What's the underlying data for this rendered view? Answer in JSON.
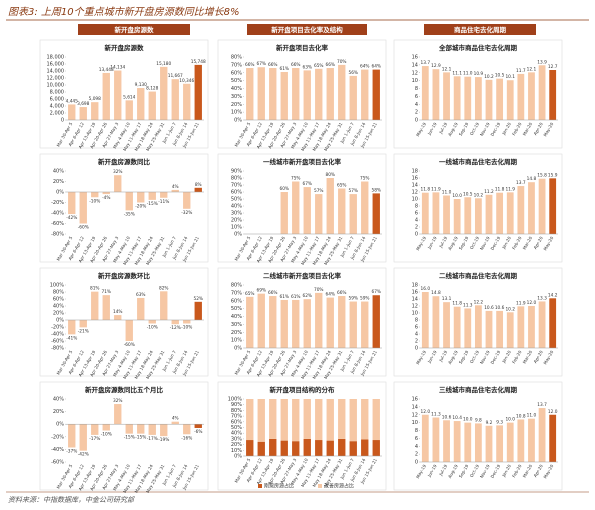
{
  "title": "图表3: 上周10个重点城市新开盘房源数同比增长8%",
  "section_headers": [
    "新开盘房源数",
    "新开盘项目去化率及结构",
    "商品住宅去化周期"
  ],
  "source": "资料来源：中指数据库，中金公司研究部",
  "chart_data": [
    {
      "type": "bar",
      "title": "新开盘房源数",
      "color": "#f6c7a4",
      "highlight_color": "#c9581c",
      "categories": [
        "Mar 30-Apr 5",
        "Apr 6-Apr 12",
        "Apr 13-Apr 19",
        "Apr 20-Apr 26",
        "Apr 27-May 3",
        "May 4-May 10",
        "May 11-May 17",
        "May 18-May 24",
        "May 25-May 31",
        "Jun 1-Jun 7",
        "Jun 8-Jun 14",
        "Jun 15-Jun 21"
      ],
      "values": [
        4445,
        3698,
        5098,
        13448,
        14134,
        5614,
        9130,
        8128,
        15180,
        11667,
        10346,
        15748
      ],
      "value_labels": [
        "4,445",
        "3,698",
        "5,098",
        "13,448",
        "14,134",
        "5,614",
        "9,130",
        "8,128",
        "15,180",
        "11,667",
        "10,346",
        "15,748"
      ],
      "ylim": [
        0,
        18000
      ],
      "yticks": [
        0,
        {
          "value": 2000,
          "label": "2,000"
        },
        {
          "value": 4000,
          "label": "4,000"
        },
        {
          "value": 6000,
          "label": "6,000"
        },
        {
          "value": 8000,
          "label": "8,000"
        },
        {
          "value": 10000,
          "label": "10,000"
        },
        {
          "value": 12000,
          "label": "12,000"
        },
        {
          "value": 14000,
          "label": "14,000"
        },
        {
          "value": 16000,
          "label": "16,000"
        },
        {
          "value": 18000,
          "label": "18,000"
        }
      ]
    },
    {
      "type": "bar",
      "title": "新开盘项目去化率",
      "color": "#f6c7a4",
      "highlight_color": "#c9581c",
      "categories": [
        "Mar 30-Apr 5",
        "Apr 6-Apr 12",
        "Apr 13-Apr 19",
        "Apr 20-Apr 26",
        "Apr 27-May 3",
        "May 4-May 10",
        "May 11-May 17",
        "May 18-May 24",
        "May 25-May 31",
        "Jun 1-Jun 7",
        "Jun 8-Jun 14",
        "Jun 15-Jun 21"
      ],
      "values": [
        66,
        67,
        66,
        61,
        66,
        63,
        65,
        66,
        70,
        56,
        64,
        64
      ],
      "value_labels": [
        "66%",
        "67%",
        "66%",
        "61%",
        "66%",
        "63%",
        "65%",
        "66%",
        "70%",
        "56%",
        "64%",
        "64%"
      ],
      "ylim": [
        0,
        80
      ],
      "yticks": [
        {
          "value": 0,
          "label": "0%"
        },
        {
          "value": 10,
          "label": "10%"
        },
        {
          "value": 20,
          "label": "20%"
        },
        {
          "value": 30,
          "label": "30%"
        },
        {
          "value": 40,
          "label": "40%"
        },
        {
          "value": 50,
          "label": "50%"
        },
        {
          "value": 60,
          "label": "60%"
        },
        {
          "value": 70,
          "label": "70%"
        },
        {
          "value": 80,
          "label": "80%"
        }
      ]
    },
    {
      "type": "bar",
      "title": "全部城市商品住宅去化周期",
      "color": "#f6c7a4",
      "highlight_color": "#c9581c",
      "categories": [
        "May-19",
        "Jun-19",
        "Jul-19",
        "Aug-19",
        "Sep-19",
        "Oct-19",
        "Nov-19",
        "Dec-19",
        "Jan-20",
        "Feb-20",
        "Mar-20",
        "Apr-20",
        "May-20"
      ],
      "values": [
        13.7,
        12.9,
        12.1,
        11.1,
        11.0,
        10.9,
        10.2,
        10.5,
        10.1,
        11.7,
        12.1,
        13.9,
        12.7
      ],
      "value_labels": [
        "13.7",
        "12.9",
        "12.1",
        "11.1",
        "11.0",
        "10.9",
        "10.2",
        "10.5",
        "10.1",
        "11.7",
        "12.1",
        "13.9",
        "12.7"
      ],
      "ylim": [
        0,
        16
      ],
      "yticks": [
        0,
        2,
        4,
        6,
        8,
        10,
        12,
        14,
        16
      ]
    },
    {
      "type": "bar",
      "title": "新开盘房源数同比",
      "color": "#f6c7a4",
      "highlight_color": "#c9581c",
      "categories": [
        "Mar 30-Apr 5",
        "Apr 6-Apr 12",
        "Apr 13-Apr 19",
        "Apr 20-Apr 26",
        "Apr 27-May 3",
        "May 4-May 10",
        "May 11-May 17",
        "May 18-May 24",
        "May 25-May 31",
        "Jun 1-Jun 7",
        "Jun 8-Jun 14",
        "Jun 15-Jun 21"
      ],
      "values": [
        -42,
        -60,
        -10,
        -4,
        32,
        -35,
        -20,
        -15,
        -11,
        4,
        -32,
        8
      ],
      "value_labels": [
        "-42%",
        "-60%",
        "-10%",
        "-4%",
        "32%",
        "-35%",
        "-20%",
        "-15%",
        "-11%",
        "4%",
        "-32%",
        "8%"
      ],
      "ylim": [
        -80,
        40
      ],
      "yticks": [
        {
          "value": -80,
          "label": "-80%"
        },
        {
          "value": -60,
          "label": "-60%"
        },
        {
          "value": -40,
          "label": "-40%"
        },
        {
          "value": -20,
          "label": "-20%"
        },
        {
          "value": 0,
          "label": "0%"
        },
        {
          "value": 20,
          "label": "20%"
        },
        {
          "value": 40,
          "label": "40%"
        }
      ]
    },
    {
      "type": "bar",
      "title": "一线城市新开盘项目去化率",
      "color": "#f6c7a4",
      "highlight_color": "#c9581c",
      "categories": [
        "Mar 30-Apr 5",
        "Apr 6-Apr 12",
        "Apr 13-Apr 19",
        "Apr 20-Apr 26",
        "Apr 27-May 3",
        "May 4-May 10",
        "May 11-May 17",
        "May 18-May 24",
        "May 25-May 31",
        "Jun 1-Jun 7",
        "Jun 8-Jun 14",
        "Jun 15-Jun 21"
      ],
      "values": [
        null,
        null,
        null,
        60,
        75,
        67,
        57,
        80,
        65,
        57,
        75,
        58
      ],
      "value_labels": [
        null,
        null,
        null,
        "60%",
        "75%",
        "67%",
        "57%",
        "80%",
        "65%",
        "57%",
        "75%",
        "58%"
      ],
      "ylim": [
        0,
        90
      ],
      "yticks": [
        {
          "value": 0,
          "label": "0%"
        },
        {
          "value": 10,
          "label": "10%"
        },
        {
          "value": 20,
          "label": "20%"
        },
        {
          "value": 30,
          "label": "30%"
        },
        {
          "value": 40,
          "label": "40%"
        },
        {
          "value": 50,
          "label": "50%"
        },
        {
          "value": 60,
          "label": "60%"
        },
        {
          "value": 70,
          "label": "70%"
        },
        {
          "value": 80,
          "label": "80%"
        },
        {
          "value": 90,
          "label": "90%"
        }
      ]
    },
    {
      "type": "bar",
      "title": "一线城市商品住宅去化周期",
      "color": "#f6c7a4",
      "highlight_color": "#c9581c",
      "categories": [
        "May-19",
        "Jun-19",
        "Jul-19",
        "Aug-19",
        "Sep-19",
        "Oct-19",
        "Nov-19",
        "Dec-19",
        "Jan-20",
        "Feb-20",
        "Mar-20",
        "Apr-20",
        "May-20"
      ],
      "values": [
        11.8,
        11.9,
        11.0,
        10.0,
        10.5,
        10.2,
        11.2,
        11.8,
        11.9,
        13.7,
        14.8,
        15.8,
        15.9
      ],
      "value_labels": [
        "11.8",
        "11.9",
        "11.0",
        "10.0",
        "10.5",
        "10.2",
        "11.2",
        "11.8",
        "11.9",
        "13.7",
        "14.8",
        "15.8",
        "15.9"
      ],
      "ylim": [
        0,
        18
      ],
      "yticks": [
        0,
        2,
        4,
        6,
        8,
        10,
        12,
        14,
        16,
        18
      ]
    },
    {
      "type": "bar",
      "title": "新开盘房源数环比",
      "color": "#f6c7a4",
      "highlight_color": "#c9581c",
      "categories": [
        "Mar 30-Apr 5",
        "Apr 6-Apr 12",
        "Apr 13-Apr 19",
        "Apr 20-Apr 26",
        "Apr 27-May 3",
        "May 4-May 10",
        "May 11-May 17",
        "May 18-May 24",
        "May 25-May 31",
        "Jun 1-Jun 7",
        "Jun 8-Jun 14",
        "Jun 15-Jun 21"
      ],
      "values": [
        -41,
        -21,
        81,
        71,
        14,
        -60,
        63,
        -10,
        82,
        -12,
        -10,
        52
      ],
      "value_labels": [
        "-41%",
        "-21%",
        "81%",
        "71%",
        "14%",
        "-60%",
        "63%",
        "-10%",
        "82%",
        "-12%",
        "-10%",
        "52%"
      ],
      "ylim": [
        -80,
        100
      ],
      "yticks": [
        {
          "value": -80,
          "label": "-80%"
        },
        {
          "value": -60,
          "label": "-60%"
        },
        {
          "value": -40,
          "label": "-40%"
        },
        {
          "value": -20,
          "label": "-20%"
        },
        {
          "value": 0,
          "label": "0%"
        },
        {
          "value": 20,
          "label": "20%"
        },
        {
          "value": 40,
          "label": "40%"
        },
        {
          "value": 60,
          "label": "60%"
        },
        {
          "value": 80,
          "label": "80%"
        },
        {
          "value": 100,
          "label": "100%"
        }
      ]
    },
    {
      "type": "bar",
      "title": "二线城市新开盘项目去化率",
      "color": "#f6c7a4",
      "highlight_color": "#c9581c",
      "categories": [
        "Mar 30-Apr 5",
        "Apr 6-Apr 12",
        "Apr 13-Apr 19",
        "Apr 20-Apr 26",
        "Apr 27-May 3",
        "May 4-May 10",
        "May 11-May 17",
        "May 18-May 24",
        "May 25-May 31",
        "Jun 1-Jun 7",
        "Jun 8-Jun 14",
        "Jun 15-Jun 21"
      ],
      "values": [
        65,
        69,
        66,
        61,
        61,
        62,
        70,
        64,
        66,
        59,
        59,
        67
      ],
      "value_labels": [
        "65%",
        "69%",
        "66%",
        "61%",
        "61%",
        "62%",
        "70%",
        "64%",
        "66%",
        "59%",
        "59%",
        "67%"
      ],
      "ylim": [
        0,
        80
      ],
      "yticks": [
        {
          "value": 0,
          "label": "0%"
        },
        {
          "value": 10,
          "label": "10%"
        },
        {
          "value": 20,
          "label": "20%"
        },
        {
          "value": 30,
          "label": "30%"
        },
        {
          "value": 40,
          "label": "40%"
        },
        {
          "value": 50,
          "label": "50%"
        },
        {
          "value": 60,
          "label": "60%"
        },
        {
          "value": 70,
          "label": "70%"
        },
        {
          "value": 80,
          "label": "80%"
        }
      ]
    },
    {
      "type": "bar",
      "title": "二线城市商品住宅去化周期",
      "color": "#f6c7a4",
      "highlight_color": "#c9581c",
      "categories": [
        "May-19",
        "Jun-19",
        "Jul-19",
        "Aug-19",
        "Sep-19",
        "Oct-19",
        "Nov-19",
        "Dec-19",
        "Jan-20",
        "Feb-20",
        "Mar-20",
        "Apr-20",
        "May-20"
      ],
      "values": [
        16.0,
        14.8,
        13.1,
        11.8,
        11.3,
        12.2,
        10.6,
        10.6,
        10.2,
        11.9,
        12.0,
        13.3,
        14.2
      ],
      "value_labels": [
        "16.0",
        "14.8",
        "13.1",
        "11.8",
        "11.3",
        "12.2",
        "10.6",
        "10.6",
        "10.2",
        "11.9",
        "12.0",
        "13.3",
        "14.2"
      ],
      "ylim": [
        0,
        18
      ],
      "yticks": [
        0,
        2,
        4,
        6,
        8,
        10,
        12,
        14,
        16,
        18
      ]
    },
    {
      "type": "bar",
      "title": "新开盘房源数同比五个月比",
      "color": "#f6c7a4",
      "highlight_color": "#c9581c",
      "categories": [
        "Mar 30-Apr 5",
        "Apr 6-Apr 12",
        "Apr 13-Apr 19",
        "Apr 20-Apr 26",
        "Apr 27-May 3",
        "May 4-May 10",
        "May 11-May 17",
        "May 18-May 24",
        "May 25-May 31",
        "Jun 1-Jun 7",
        "Jun 8-Jun 14",
        "Jun 15-Jun 21"
      ],
      "values": [
        -37,
        -42,
        -17,
        -10,
        32,
        -15,
        -15,
        -17,
        -19,
        4,
        -16,
        -6
      ],
      "value_labels": [
        "-37%",
        "-42%",
        "-17%",
        "-10%",
        "32%",
        "-15%",
        "-15%",
        "-17%",
        "-19%",
        "4%",
        "-16%",
        "-6%"
      ],
      "ylim": [
        -60,
        40
      ],
      "yticks": [
        {
          "value": -60,
          "label": "-60%"
        },
        {
          "value": -40,
          "label": "-40%"
        },
        {
          "value": -20,
          "label": "-20%"
        },
        {
          "value": 0,
          "label": "0%"
        },
        {
          "value": 20,
          "label": "20%"
        },
        {
          "value": 40,
          "label": "40%"
        }
      ]
    },
    {
      "type": "stacked_bar",
      "title": "新开盘项目结构的分布",
      "categories": [
        "Mar 30-Apr 5",
        "Apr 6-Apr 12",
        "Apr 13-Apr 19",
        "Apr 20-Apr 26",
        "Apr 27-May 3",
        "May 4-May 10",
        "May 11-May 17",
        "May 18-May 24",
        "May 25-May 31",
        "Jun 1-Jun 7",
        "Jun 8-Jun 14",
        "Jun 15-Jun 21"
      ],
      "series": [
        {
          "name": "刚需房源占比",
          "color": "#c9581c",
          "values": [
            28,
            25,
            30,
            27,
            26,
            30,
            28,
            27,
            30,
            26,
            29,
            28
          ]
        },
        {
          "name": "改善房源占比",
          "color": "#f6c7a4",
          "values": [
            72,
            75,
            70,
            73,
            74,
            70,
            72,
            73,
            70,
            74,
            71,
            72
          ]
        }
      ],
      "ylim": [
        0,
        100
      ],
      "yticks": [
        {
          "value": 0,
          "label": "0%"
        },
        {
          "value": 10,
          "label": "10%"
        },
        {
          "value": 20,
          "label": "20%"
        },
        {
          "value": 30,
          "label": "30%"
        },
        {
          "value": 40,
          "label": "40%"
        },
        {
          "value": 50,
          "label": "50%"
        },
        {
          "value": 60,
          "label": "60%"
        },
        {
          "value": 70,
          "label": "70%"
        },
        {
          "value": 80,
          "label": "80%"
        },
        {
          "value": 90,
          "label": "90%"
        },
        {
          "value": 100,
          "label": "100%"
        }
      ]
    },
    {
      "type": "bar",
      "title": "三线城市商品住宅去化周期",
      "color": "#f6c7a4",
      "highlight_color": "#c9581c",
      "categories": [
        "May-19",
        "Jun-19",
        "Jul-19",
        "Aug-19",
        "Sep-19",
        "Oct-19",
        "Nov-19",
        "Dec-19",
        "Jan-20",
        "Feb-20",
        "Mar-20",
        "Apr-20",
        "May-20"
      ],
      "values": [
        12.0,
        11.3,
        10.6,
        10.4,
        10.0,
        9.8,
        9.2,
        9.3,
        10.0,
        10.8,
        11.0,
        13.7,
        12.0
      ],
      "value_labels": [
        "12.0",
        "11.3",
        "10.6",
        "10.4",
        "10.0",
        "9.8",
        "9.2",
        "9.3",
        "10.0",
        "10.8",
        "11.0",
        "13.7",
        "12.0"
      ],
      "ylim": [
        0,
        16
      ],
      "yticks": [
        0,
        2,
        4,
        6,
        8,
        10,
        12,
        14,
        16
      ]
    }
  ]
}
